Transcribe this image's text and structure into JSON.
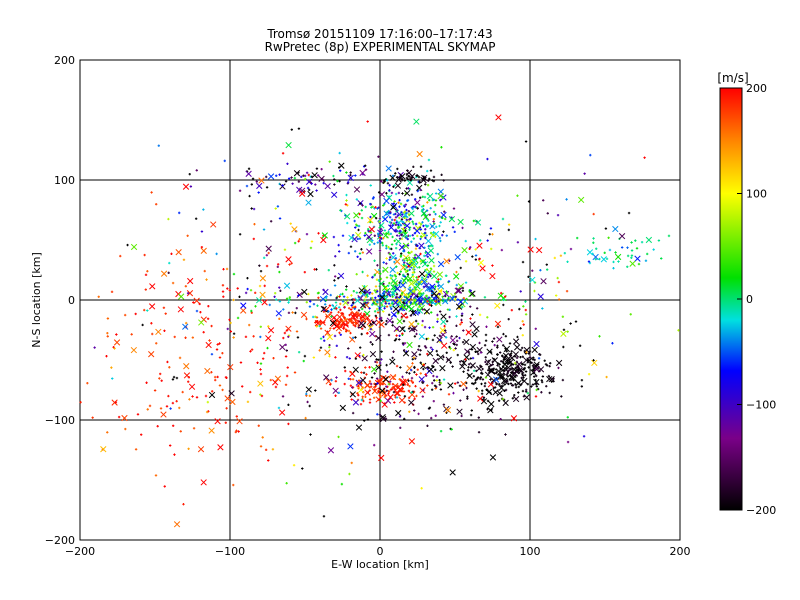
{
  "chart_data": {
    "type": "scatter",
    "title": "Tromsø 20151109 17:16:00–17:17:43",
    "subtitle": "RwPretec (8p) EXPERIMENTAL SKYMAP",
    "xlabel": "E-W location [km]",
    "ylabel": "N-S location [km]",
    "xlim": [
      -200,
      200
    ],
    "ylim": [
      -200,
      200
    ],
    "xticks": [
      -200,
      -100,
      0,
      100,
      200
    ],
    "yticks": [
      -200,
      -100,
      0,
      100,
      200
    ],
    "grid": true,
    "colorbar": {
      "label": "[m/s]",
      "min": -200,
      "max": 200,
      "ticks": [
        200,
        100,
        0,
        -100,
        -200
      ],
      "scale": "black-purple-blue-cyan-green-yellow-red"
    },
    "markers": [
      "+",
      "x"
    ],
    "clusters": [
      {
        "x": 15,
        "y": 65,
        "sx": 18,
        "sy": 14,
        "n": 320,
        "v": -40,
        "dv": 60
      },
      {
        "x": 20,
        "y": 15,
        "sx": 15,
        "sy": 18,
        "n": 260,
        "v": 20,
        "dv": 60
      },
      {
        "x": 5,
        "y": 0,
        "sx": 30,
        "sy": 5,
        "n": 220,
        "v": -30,
        "dv": 70
      },
      {
        "x": -25,
        "y": -17,
        "sx": 12,
        "sy": 6,
        "n": 130,
        "v": 185,
        "dv": 15
      },
      {
        "x": 5,
        "y": -72,
        "sx": 15,
        "sy": 8,
        "n": 140,
        "v": 185,
        "dv": 15
      },
      {
        "x": 85,
        "y": -60,
        "sx": 15,
        "sy": 12,
        "n": 300,
        "v": -195,
        "dv": 8
      },
      {
        "x": 30,
        "y": -50,
        "sx": 30,
        "sy": 30,
        "n": 260,
        "v": -180,
        "dv": 40
      },
      {
        "x": -120,
        "y": -50,
        "sx": 45,
        "sy": 50,
        "n": 220,
        "v": 185,
        "dv": 25
      },
      {
        "x": 160,
        "y": 40,
        "sx": 22,
        "sy": 8,
        "n": 50,
        "v": -10,
        "dv": 20
      },
      {
        "x": 20,
        "y": 100,
        "sx": 12,
        "sy": 4,
        "n": 60,
        "v": -195,
        "dv": 8
      },
      {
        "x": -50,
        "y": 100,
        "sx": 30,
        "sy": 6,
        "n": 80,
        "v": -120,
        "dv": 80
      },
      {
        "x": 0,
        "y": 0,
        "sx": 70,
        "sy": 60,
        "n": 500,
        "v": 0,
        "dv": 200
      }
    ]
  }
}
